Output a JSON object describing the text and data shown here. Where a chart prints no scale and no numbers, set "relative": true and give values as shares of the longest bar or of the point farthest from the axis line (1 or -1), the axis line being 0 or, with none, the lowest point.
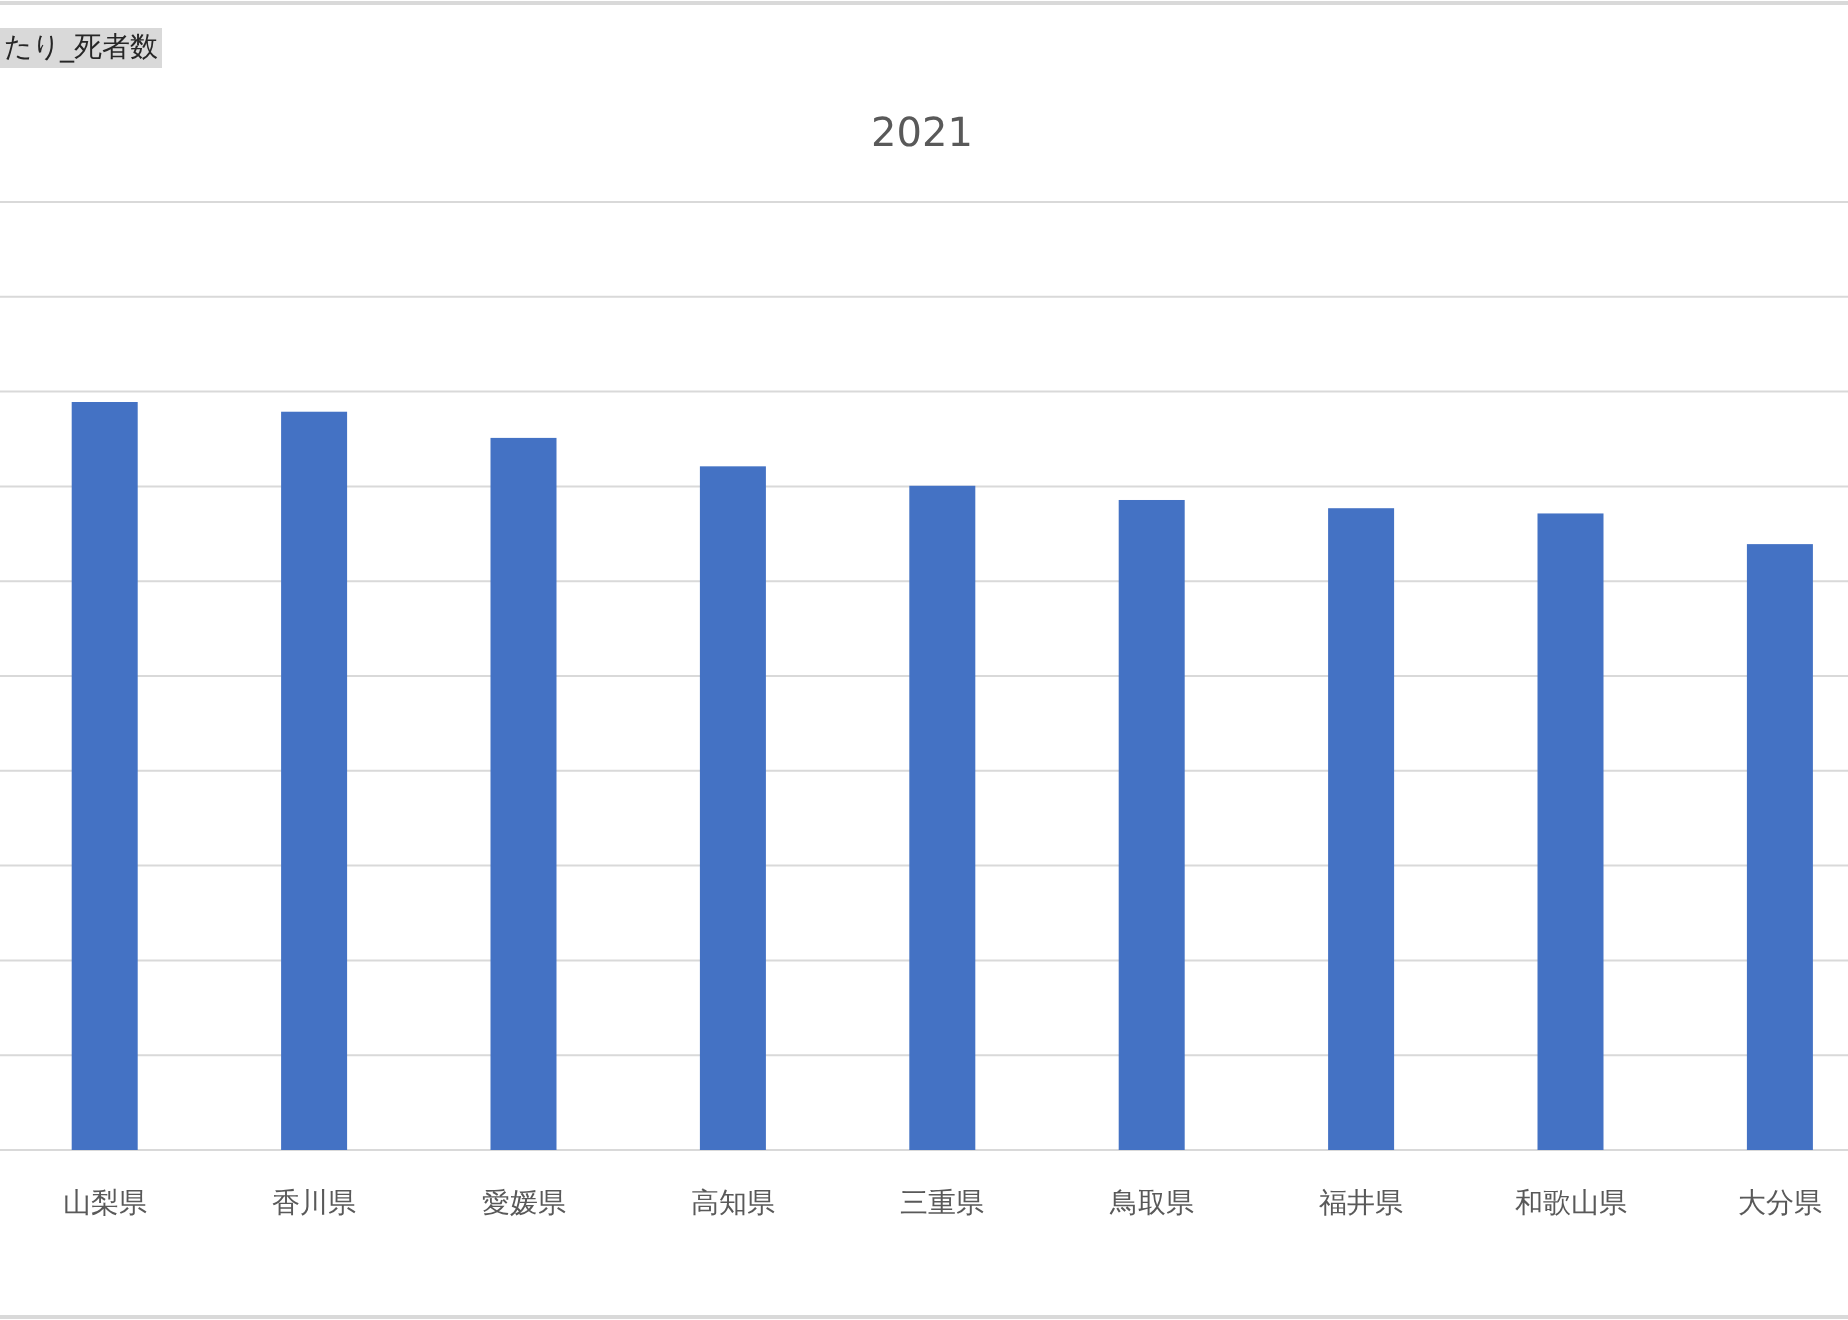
{
  "chart_data": {
    "type": "bar",
    "title": "2021",
    "annotations": [
      "たり_死者数"
    ],
    "categories": [
      "山梨県",
      "香川県",
      "愛媛県",
      "高知県",
      "三重県",
      "鳥取県",
      "福井県",
      "和歌山県",
      "大分県"
    ],
    "values": [
      1,
      0.987,
      0.952,
      0.914,
      0.888,
      0.869,
      0.858,
      0.851,
      0.81
    ],
    "color": "#4472c4",
    "relative": true,
    "grid": "y"
  }
}
